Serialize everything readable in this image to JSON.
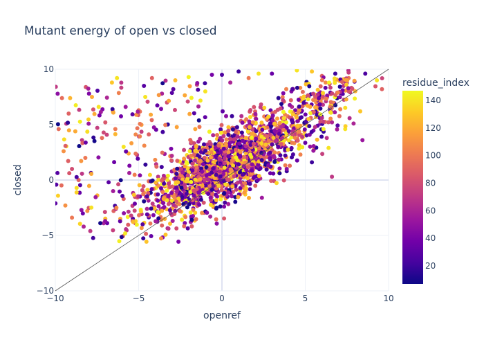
{
  "chart_data": {
    "type": "scatter",
    "title": "Mutant energy of open vs closed",
    "xlabel": "openref",
    "ylabel": "closed",
    "xlim": [
      -10,
      10
    ],
    "ylim": [
      -10,
      10
    ],
    "xticks": [
      -10,
      -5,
      0,
      5,
      10
    ],
    "yticks": [
      -10,
      -5,
      0,
      5,
      10
    ],
    "xtick_labels": [
      "−10",
      "−5",
      "0",
      "5",
      "10"
    ],
    "ytick_labels": [
      "−10",
      "−5",
      "0",
      "5",
      "10"
    ],
    "grid": true,
    "reference_line": {
      "from": [
        -10,
        -10
      ],
      "to": [
        10,
        10
      ],
      "color": "#555555"
    },
    "colorbar": {
      "title": "residue_index",
      "min": 7,
      "max": 147,
      "ticks": [
        20,
        40,
        60,
        80,
        100,
        120,
        140
      ],
      "tick_labels": [
        "20",
        "40",
        "60",
        "80",
        "100",
        "120",
        "140"
      ],
      "colorscale": [
        "#0d0887",
        "#46039f",
        "#7201a8",
        "#9c179e",
        "#bd3786",
        "#d8576b",
        "#ed7953",
        "#fb9f3a",
        "#fdca26",
        "#f0f921"
      ]
    },
    "point_count": 2200,
    "points": [
      [
        -9.6,
        7.4,
        95
      ],
      [
        -9.2,
        6.0,
        90
      ],
      [
        -9.5,
        2.6,
        110
      ],
      [
        -9.0,
        1.0,
        80
      ],
      [
        -8.4,
        3.6,
        70
      ],
      [
        -8.2,
        2.0,
        100
      ],
      [
        -7.8,
        7.5,
        120
      ],
      [
        -7.4,
        6.6,
        140
      ],
      [
        -7.2,
        3.8,
        95
      ],
      [
        -7.0,
        5.2,
        85
      ],
      [
        -6.8,
        -0.2,
        30
      ],
      [
        -6.6,
        8.8,
        130
      ],
      [
        -6.3,
        9.2,
        140
      ],
      [
        -6.4,
        4.6,
        100
      ],
      [
        -5.9,
        3.0,
        140
      ],
      [
        -5.6,
        2.4,
        120
      ],
      [
        -5.0,
        6.3,
        100
      ],
      [
        -4.6,
        7.5,
        140
      ],
      [
        -4.2,
        9.2,
        90
      ],
      [
        -3.6,
        7.8,
        60
      ],
      [
        -3.3,
        7.0,
        80
      ],
      [
        -2.8,
        9.0,
        125
      ],
      [
        -2.0,
        9.3,
        145
      ],
      [
        -1.5,
        8.6,
        70
      ],
      [
        -1.0,
        8.0,
        140
      ],
      [
        -0.6,
        9.5,
        40
      ],
      [
        0.0,
        9.5,
        25
      ],
      [
        0.5,
        8.8,
        60
      ],
      [
        1.0,
        9.8,
        20
      ],
      [
        1.6,
        9.2,
        100
      ],
      [
        2.2,
        9.6,
        140
      ],
      [
        3.0,
        9.6,
        35
      ],
      [
        4.5,
        9.9,
        140
      ],
      [
        5.4,
        9.8,
        130
      ],
      [
        6.0,
        9.4,
        90
      ],
      [
        6.8,
        9.6,
        20
      ],
      [
        7.6,
        9.2,
        100
      ],
      [
        8.6,
        9.6,
        25
      ],
      [
        9.6,
        8.2,
        90
      ],
      [
        9.3,
        9.0,
        140
      ],
      [
        8.3,
        6.2,
        130
      ],
      [
        7.4,
        4.6,
        140
      ],
      [
        6.4,
        2.9,
        140
      ],
      [
        5.4,
        1.6,
        20
      ],
      [
        7.9,
        5.1,
        60
      ],
      [
        -9.4,
        -2.3,
        110
      ],
      [
        -9.0,
        -3.4,
        100
      ],
      [
        -8.3,
        -4.2,
        60
      ],
      [
        -7.9,
        -4.6,
        70
      ],
      [
        -7.1,
        -3.9,
        60
      ],
      [
        -6.5,
        -2.8,
        90
      ],
      [
        -6.1,
        -3.5,
        120
      ],
      [
        -5.2,
        -3.9,
        80
      ],
      [
        -3.6,
        -4.1,
        90
      ],
      [
        -0.7,
        -3.3,
        60
      ],
      [
        -1.5,
        -1.9,
        80
      ],
      [
        -0.3,
        0.2,
        40
      ],
      [
        0.3,
        4.3,
        50
      ],
      [
        2.4,
        4.5,
        40
      ],
      [
        3.6,
        5.6,
        70
      ],
      [
        4.4,
        6.3,
        40
      ],
      [
        5.2,
        7.5,
        55
      ],
      [
        6.6,
        0.3,
        70
      ],
      [
        1.4,
        -1.3,
        130
      ],
      [
        -2.3,
        -1.5,
        80
      ],
      [
        -4.5,
        -2.6,
        60
      ],
      [
        -5.9,
        -1.7,
        90
      ],
      [
        -8.8,
        4.4,
        120
      ],
      [
        -8.6,
        0.0,
        90
      ],
      [
        -9.8,
        4.6,
        95
      ]
    ]
  }
}
